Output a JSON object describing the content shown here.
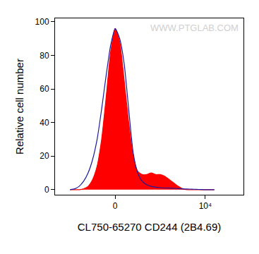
{
  "chart_data": {
    "type": "area",
    "x_label": "CL750-65270 CD244 (2B4.69)",
    "y_label": "Relative cell number",
    "annotations": [
      "WWW.PTGLAB.COM"
    ],
    "x": [
      -5000,
      -4500,
      -4000,
      -3500,
      -3000,
      -2500,
      -2000,
      -1500,
      -1000,
      -500,
      0,
      500,
      1000,
      1500,
      2000,
      2500,
      3000,
      3500,
      4000,
      4500,
      5000,
      5500,
      6000,
      6500,
      7000,
      7500,
      8000,
      8500,
      9000,
      9500,
      10000,
      10500,
      11000
    ],
    "series": [
      {
        "type": "area",
        "color": "#ff0000",
        "values": [
          0,
          0,
          0,
          0.5,
          2,
          6,
          14,
          30,
          55,
          82,
          96,
          88,
          65,
          40,
          20,
          11,
          9,
          9,
          10,
          9,
          9,
          8,
          6,
          4,
          2,
          0.5,
          0,
          0,
          0,
          0,
          0,
          0,
          0
        ]
      },
      {
        "type": "line",
        "color": "#1a1aa0",
        "values": [
          0,
          0.5,
          2,
          5,
          10,
          18,
          30,
          48,
          68,
          86,
          96,
          90,
          75,
          48,
          22,
          10,
          5,
          3,
          2,
          1.5,
          1.2,
          1,
          1,
          0.8,
          0.6,
          0.5,
          0.4,
          0.3,
          0.2,
          0.1,
          0,
          0,
          0
        ]
      }
    ],
    "xlim": [
      -6667,
      14230
    ],
    "xticks": [
      0,
      {
        "value": 10000,
        "label": "10⁴"
      }
    ],
    "ylim": [
      -3,
      102
    ],
    "yticks": [
      0,
      20,
      40,
      60,
      80,
      100
    ],
    "grid": false
  }
}
